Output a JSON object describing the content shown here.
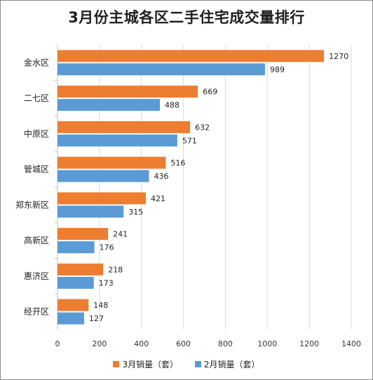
{
  "chart_data": {
    "type": "bar",
    "orientation": "horizontal",
    "title": "3月份主城各区二手住宅成交量排行",
    "categories": [
      "金水区",
      "二七区",
      "中原区",
      "管城区",
      "郑东新区",
      "高新区",
      "惠济区",
      "经开区"
    ],
    "series": [
      {
        "name": "3月销量（套）",
        "color": "#ed7d31",
        "values": [
          1270,
          669,
          632,
          516,
          421,
          241,
          218,
          148
        ]
      },
      {
        "name": "2月销量（套）",
        "color": "#5b9bd5",
        "values": [
          989,
          488,
          571,
          436,
          315,
          176,
          173,
          127
        ]
      }
    ],
    "xlim": [
      0,
      1400
    ],
    "xticks": [
      0,
      200,
      400,
      600,
      800,
      1000,
      1200,
      1400
    ],
    "grid": true,
    "legend_position": "bottom"
  }
}
